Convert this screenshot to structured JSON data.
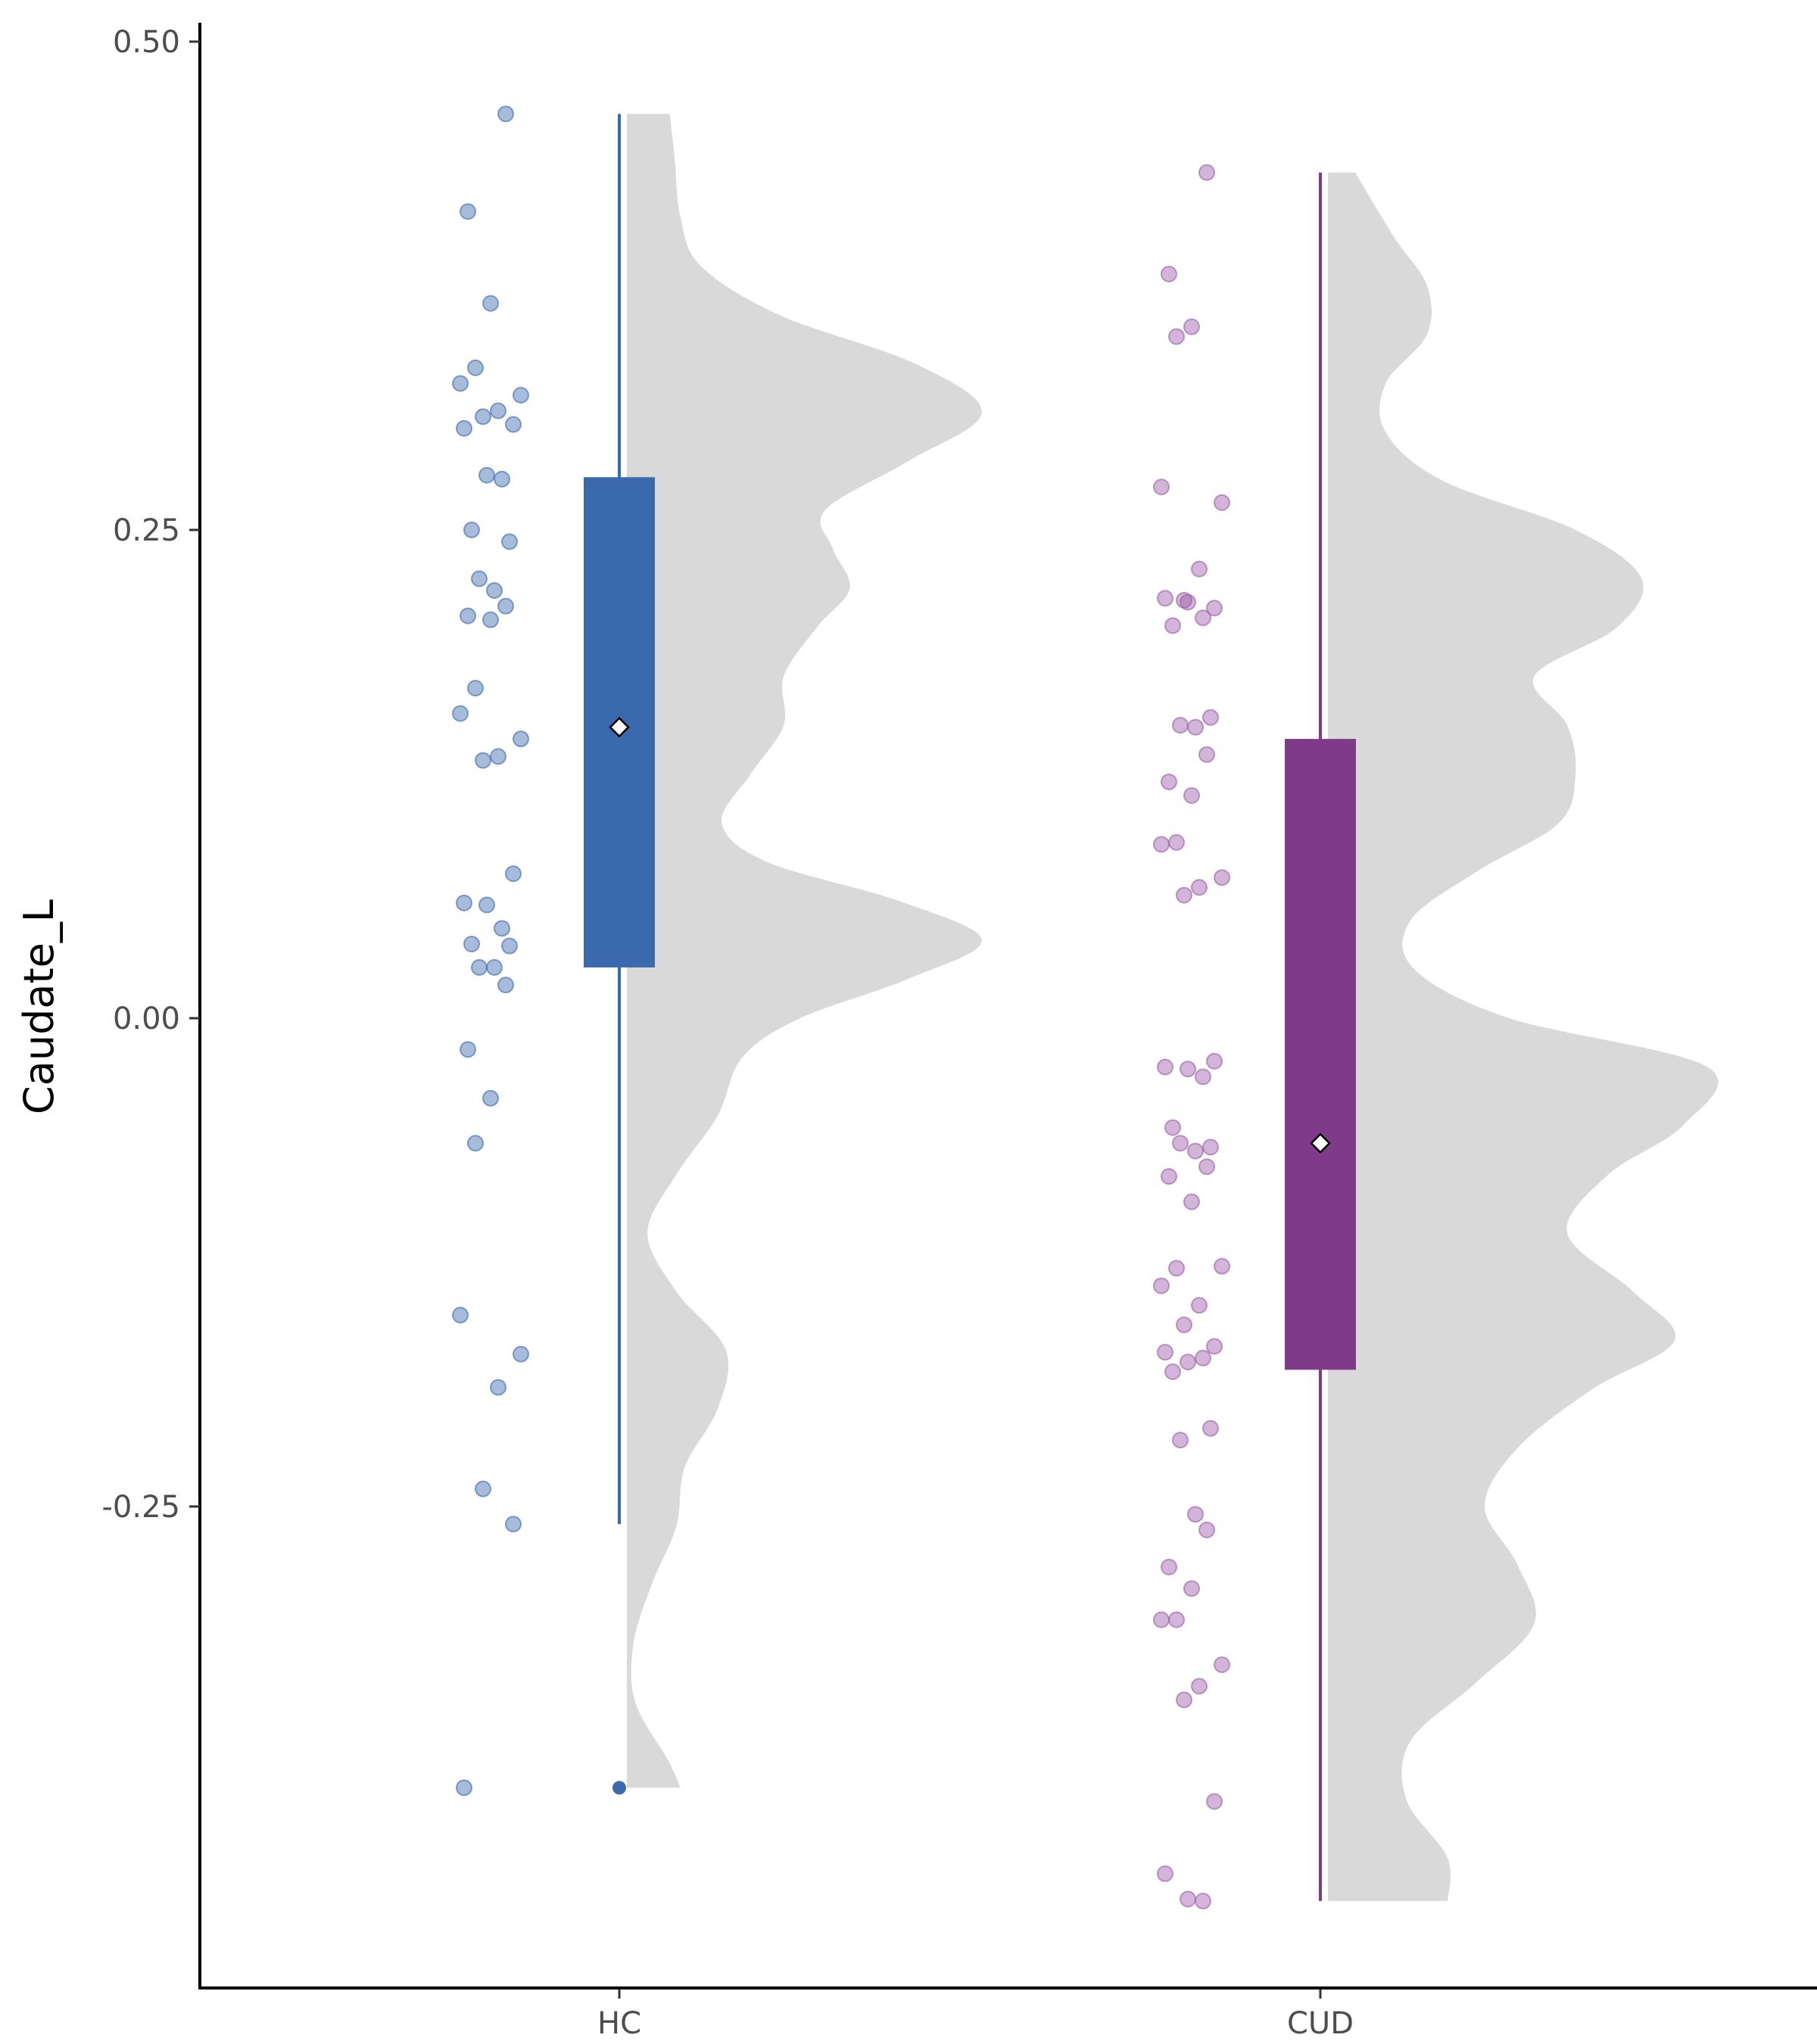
{
  "chart_data": {
    "type": "raincloud",
    "title": "",
    "xlabel": "",
    "ylabel": "Caudate_L",
    "ylim": [
      -0.49,
      0.51
    ],
    "yticks": [
      0.5,
      0.25,
      0.0,
      -0.25
    ],
    "ytick_labels": [
      "0.50",
      "0.25",
      "0.00",
      "-0.25"
    ],
    "categories": [
      "HC",
      "CUD"
    ],
    "grid": false,
    "legend": "none",
    "density_color": "#d9d9d9",
    "groups": [
      {
        "name": "HC",
        "color": "#3b69ad",
        "point_color": "#3b69ad",
        "box": {
          "q1": 0.026,
          "median": 0.155,
          "q3": 0.277,
          "whisker_low": -0.259,
          "whisker_high": 0.463
        },
        "mean": 0.149,
        "outliers": [
          -0.394
        ],
        "points": [
          0.463,
          0.413,
          0.366,
          0.333,
          0.325,
          0.319,
          0.311,
          0.308,
          0.304,
          0.302,
          0.278,
          0.276,
          0.25,
          0.244,
          0.225,
          0.219,
          0.211,
          0.206,
          0.204,
          0.169,
          0.156,
          0.143,
          0.134,
          0.132,
          0.074,
          0.059,
          0.058,
          0.046,
          0.038,
          0.037,
          0.026,
          0.026,
          0.017,
          -0.016,
          -0.041,
          -0.064,
          -0.152,
          -0.172,
          -0.189,
          -0.241,
          -0.259,
          -0.394
        ],
        "density": [
          [
            0.463,
            0.052
          ],
          [
            0.44,
            0.058
          ],
          [
            0.41,
            0.065
          ],
          [
            0.385,
            0.09
          ],
          [
            0.36,
            0.185
          ],
          [
            0.335,
            0.35
          ],
          [
            0.31,
            0.43
          ],
          [
            0.285,
            0.34
          ],
          [
            0.26,
            0.24
          ],
          [
            0.24,
            0.25
          ],
          [
            0.22,
            0.27
          ],
          [
            0.2,
            0.23
          ],
          [
            0.175,
            0.19
          ],
          [
            0.15,
            0.19
          ],
          [
            0.125,
            0.15
          ],
          [
            0.1,
            0.115
          ],
          [
            0.08,
            0.17
          ],
          [
            0.06,
            0.33
          ],
          [
            0.04,
            0.43
          ],
          [
            0.02,
            0.34
          ],
          [
            0.0,
            0.21
          ],
          [
            -0.02,
            0.14
          ],
          [
            -0.05,
            0.11
          ],
          [
            -0.08,
            0.06
          ],
          [
            -0.11,
            0.025
          ],
          [
            -0.14,
            0.06
          ],
          [
            -0.17,
            0.12
          ],
          [
            -0.2,
            0.11
          ],
          [
            -0.23,
            0.07
          ],
          [
            -0.26,
            0.06
          ],
          [
            -0.29,
            0.03
          ],
          [
            -0.32,
            0.008
          ],
          [
            -0.35,
            0.01
          ],
          [
            -0.38,
            0.05
          ],
          [
            -0.394,
            0.065
          ]
        ]
      },
      {
        "name": "CUD",
        "color": "#7f3a8a",
        "point_color": "#9b5ba8",
        "box": {
          "q1": -0.18,
          "median": -0.061,
          "q3": 0.143,
          "whisker_low": -0.452,
          "whisker_high": 0.433
        },
        "mean": -0.064,
        "outliers": [],
        "points": [
          0.433,
          0.381,
          0.354,
          0.349,
          0.272,
          0.264,
          0.23,
          0.214,
          0.21,
          0.215,
          0.213,
          0.205,
          0.201,
          0.154,
          0.15,
          0.149,
          0.135,
          0.121,
          0.114,
          0.09,
          0.089,
          0.072,
          0.067,
          0.063,
          -0.022,
          -0.025,
          -0.026,
          -0.03,
          -0.056,
          -0.066,
          -0.064,
          -0.068,
          -0.076,
          -0.081,
          -0.094,
          -0.128,
          -0.137,
          -0.127,
          -0.147,
          -0.157,
          -0.168,
          -0.171,
          -0.176,
          -0.174,
          -0.181,
          -0.21,
          -0.216,
          -0.254,
          -0.262,
          -0.281,
          -0.292,
          -0.308,
          -0.308,
          -0.331,
          -0.342,
          -0.349,
          -0.401,
          -0.438,
          -0.451,
          -0.452
        ],
        "density": [
          [
            0.433,
            0.033
          ],
          [
            0.4,
            0.08
          ],
          [
            0.375,
            0.12
          ],
          [
            0.35,
            0.12
          ],
          [
            0.325,
            0.07
          ],
          [
            0.3,
            0.07
          ],
          [
            0.275,
            0.14
          ],
          [
            0.25,
            0.3
          ],
          [
            0.225,
            0.38
          ],
          [
            0.2,
            0.35
          ],
          [
            0.175,
            0.25
          ],
          [
            0.15,
            0.29
          ],
          [
            0.125,
            0.3
          ],
          [
            0.1,
            0.28
          ],
          [
            0.075,
            0.18
          ],
          [
            0.05,
            0.1
          ],
          [
            0.025,
            0.105
          ],
          [
            0.0,
            0.22
          ],
          [
            -0.025,
            0.46
          ],
          [
            -0.055,
            0.43
          ],
          [
            -0.08,
            0.34
          ],
          [
            -0.11,
            0.29
          ],
          [
            -0.14,
            0.37
          ],
          [
            -0.165,
            0.42
          ],
          [
            -0.19,
            0.32
          ],
          [
            -0.22,
            0.23
          ],
          [
            -0.25,
            0.19
          ],
          [
            -0.28,
            0.23
          ],
          [
            -0.31,
            0.25
          ],
          [
            -0.34,
            0.18
          ],
          [
            -0.37,
            0.1
          ],
          [
            -0.4,
            0.095
          ],
          [
            -0.43,
            0.145
          ],
          [
            -0.452,
            0.145
          ]
        ]
      }
    ]
  }
}
